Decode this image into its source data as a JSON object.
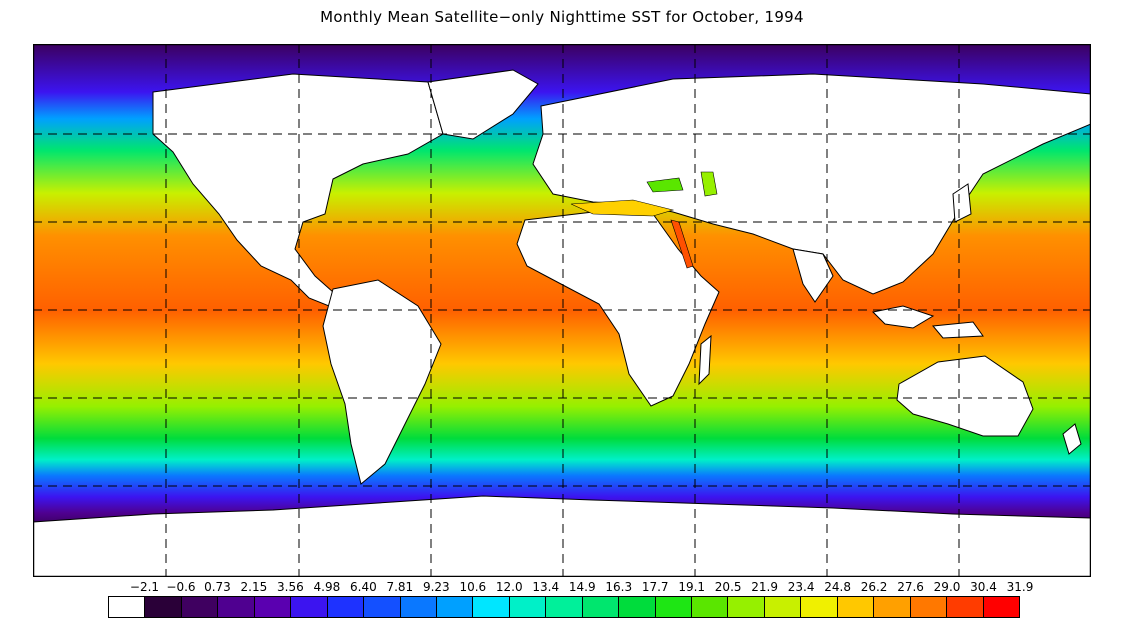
{
  "title": "Monthly Mean Satellite−only Nighttime SST for October, 1994",
  "legend": {
    "labels": [
      "−2.1",
      "−0.6",
      "0.73",
      "2.15",
      "3.56",
      "4.98",
      "6.40",
      "7.81",
      "9.23",
      "10.6",
      "12.0",
      "13.4",
      "14.9",
      "16.3",
      "17.7",
      "19.1",
      "20.5",
      "21.9",
      "23.4",
      "24.8",
      "26.2",
      "27.6",
      "29.0",
      "30.4",
      "31.9"
    ],
    "colors": [
      "#ffffff",
      "#2a0038",
      "#3f0060",
      "#4f0090",
      "#5a00b0",
      "#3c14f0",
      "#1e32ff",
      "#1450ff",
      "#0a78ff",
      "#00a0ff",
      "#00e6ff",
      "#00f0c8",
      "#00f09a",
      "#00e66e",
      "#00dc3c",
      "#1ee614",
      "#5ae600",
      "#96f000",
      "#c8f000",
      "#f0f000",
      "#ffc800",
      "#ffa000",
      "#ff7800",
      "#ff3c00",
      "#ff0000"
    ]
  },
  "map": {
    "grid": "dashed",
    "land_color": "#ffffff",
    "outline_color": "#000000"
  }
}
